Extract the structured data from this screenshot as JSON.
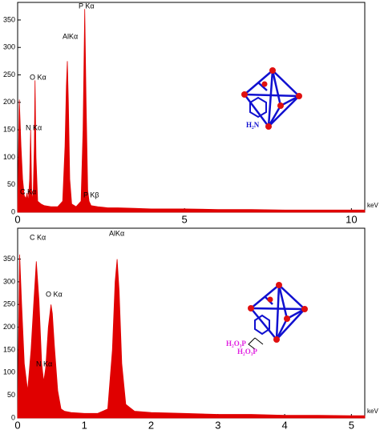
{
  "chart_data": [
    {
      "type": "area",
      "x_label": "keV",
      "color": "#e00000",
      "xlim": [
        0,
        10.4
      ],
      "ylim": [
        0,
        382
      ],
      "xticks": [
        0,
        5,
        10
      ],
      "yticks": [
        0,
        50,
        100,
        150,
        200,
        250,
        300,
        350
      ],
      "annotations": [
        "C Kα",
        "N Kα",
        "O Kα",
        "AlKα",
        "P Kα",
        "P Kβ"
      ],
      "diagram_labels": [
        "H₂N"
      ],
      "x": [
        0,
        0.05,
        0.1,
        0.15,
        0.2,
        0.25,
        0.28,
        0.32,
        0.36,
        0.39,
        0.42,
        0.46,
        0.5,
        0.52,
        0.55,
        0.6,
        0.7,
        0.8,
        1.0,
        1.2,
        1.35,
        1.42,
        1.46,
        1.49,
        1.52,
        1.56,
        1.62,
        1.75,
        1.9,
        1.96,
        2.01,
        2.05,
        2.1,
        2.14,
        2.2,
        2.4,
        2.7,
        3.0,
        3.5,
        4,
        5,
        6,
        7,
        8,
        9,
        10,
        10.4
      ],
      "values": [
        0,
        205,
        120,
        60,
        30,
        25,
        35,
        20,
        60,
        150,
        40,
        20,
        120,
        240,
        100,
        20,
        15,
        12,
        10,
        10,
        20,
        120,
        230,
        275,
        200,
        60,
        15,
        10,
        20,
        150,
        370,
        200,
        40,
        20,
        12,
        10,
        8,
        8,
        7,
        6,
        6,
        5,
        5,
        4,
        4,
        4,
        4
      ]
    },
    {
      "type": "area",
      "x_label": "keV",
      "color": "#e00000",
      "xlim": [
        0,
        5.2
      ],
      "ylim": [
        0,
        418
      ],
      "xticks": [
        0,
        1,
        2,
        3,
        4,
        5
      ],
      "yticks": [
        0,
        50,
        100,
        150,
        200,
        250,
        300,
        350
      ],
      "annotations": [
        "C Kα",
        "O Kα",
        "N Kα",
        "AlKα"
      ],
      "diagram_labels": [
        "H₂O₃P",
        "H₂O₃P"
      ],
      "x": [
        0,
        0.03,
        0.06,
        0.1,
        0.15,
        0.2,
        0.24,
        0.28,
        0.32,
        0.36,
        0.39,
        0.42,
        0.46,
        0.5,
        0.52,
        0.55,
        0.6,
        0.65,
        0.7,
        0.8,
        1.0,
        1.2,
        1.35,
        1.42,
        1.46,
        1.49,
        1.52,
        1.56,
        1.62,
        1.75,
        2,
        2.5,
        3,
        3.5,
        4,
        4.5,
        5,
        5.2
      ],
      "values": [
        0,
        360,
        250,
        120,
        60,
        150,
        250,
        345,
        260,
        120,
        80,
        110,
        200,
        250,
        230,
        160,
        60,
        20,
        15,
        12,
        10,
        10,
        20,
        150,
        300,
        350,
        280,
        120,
        30,
        15,
        12,
        10,
        8,
        8,
        6,
        6,
        5,
        5
      ]
    }
  ]
}
